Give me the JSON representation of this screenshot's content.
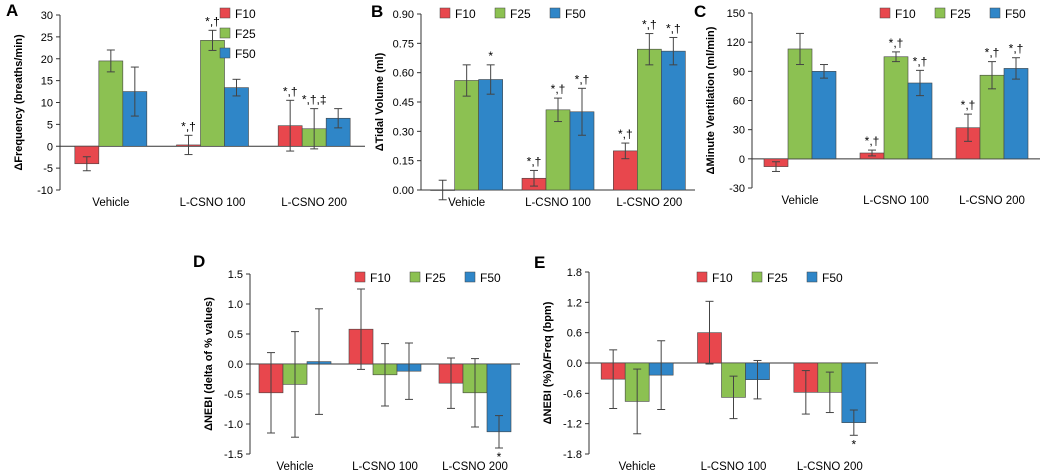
{
  "colors": {
    "F10": "#e8474d",
    "F25": "#8cc152",
    "F50": "#2f86c8"
  },
  "series_names": [
    "F10",
    "F25",
    "F50"
  ],
  "chart_data": [
    {
      "panel": "A",
      "type": "bar",
      "ylabel": "ΔFrequency (breaths/min)",
      "categories": [
        "Vehicle",
        "L-CSNO 100",
        "L-CSNO 200"
      ],
      "ylim": [
        -10,
        30
      ],
      "yticks": [
        "30",
        "25",
        "20",
        "15",
        "10",
        "5",
        "0",
        "-5",
        "-10"
      ],
      "series": [
        {
          "name": "F10",
          "values": [
            -4.0,
            0.3,
            4.7
          ],
          "errors": [
            1.6,
            2.2,
            5.8
          ]
        },
        {
          "name": "F25",
          "values": [
            19.5,
            24.2,
            4.0
          ],
          "errors": [
            2.5,
            2.3,
            4.6
          ]
        },
        {
          "name": "F50",
          "values": [
            12.5,
            13.4,
            6.4
          ],
          "errors": [
            5.6,
            1.9,
            2.2
          ]
        }
      ],
      "annotations": [
        [
          "",
          "*,†",
          "*,†"
        ],
        [
          "",
          "*,†",
          "*,†,‡"
        ],
        [
          "",
          "",
          ""
        ]
      ],
      "legend": "top-right"
    },
    {
      "panel": "B",
      "type": "bar",
      "ylabel": "ΔTidal Volume (ml)",
      "categories": [
        "Vehicle",
        "L-CSNO 100",
        "L-CSNO 200"
      ],
      "ylim": [
        0,
        0.9
      ],
      "yticks": [
        "0.90",
        "0.75",
        "0.60",
        "0.45",
        "0.30",
        "0.15",
        "0.00"
      ],
      "series": [
        {
          "name": "F10",
          "values": [
            0.0,
            0.06,
            0.2
          ],
          "errors": [
            0.05,
            0.04,
            0.04
          ]
        },
        {
          "name": "F25",
          "values": [
            0.56,
            0.41,
            0.72
          ],
          "errors": [
            0.08,
            0.06,
            0.08
          ]
        },
        {
          "name": "F50",
          "values": [
            0.565,
            0.4,
            0.71
          ],
          "errors": [
            0.075,
            0.12,
            0.07
          ]
        }
      ],
      "annotations": [
        [
          "",
          "*,†",
          "*,†"
        ],
        [
          "",
          "*,†",
          "*,†"
        ],
        [
          "*",
          "*,†",
          "*,†"
        ]
      ],
      "legend": "top"
    },
    {
      "panel": "C",
      "type": "bar",
      "ylabel": "ΔMinute Ventilation (ml/min)",
      "categories": [
        "Vehicle",
        "L-CSNO 100",
        "L-CSNO 200"
      ],
      "ylim": [
        -30,
        150
      ],
      "yticks": [
        "150",
        "120",
        "90",
        "60",
        "30",
        "0",
        "-30"
      ],
      "series": [
        {
          "name": "F10",
          "values": [
            -8,
            6,
            32
          ],
          "errors": [
            5,
            3,
            14
          ]
        },
        {
          "name": "F25",
          "values": [
            113,
            105,
            86
          ],
          "errors": [
            16,
            5,
            14
          ]
        },
        {
          "name": "F50",
          "values": [
            90,
            78,
            93
          ],
          "errors": [
            7,
            13,
            11
          ]
        }
      ],
      "annotations": [
        [
          "",
          "*,†",
          "*,†"
        ],
        [
          "",
          "*,†",
          "*,†"
        ],
        [
          "",
          "*,†",
          "*,†"
        ]
      ],
      "legend": "top-right"
    },
    {
      "panel": "D",
      "type": "bar",
      "ylabel": "ΔNEBI (delta of % values)",
      "categories": [
        "Vehicle",
        "L-CSNO 100",
        "L-CSNO 200"
      ],
      "ylim": [
        -1.5,
        1.5
      ],
      "yticks": [
        "1.5",
        "1.0",
        "0.5",
        "0.0",
        "-0.5",
        "-1.0",
        "-1.5"
      ],
      "series": [
        {
          "name": "F10",
          "values": [
            -0.48,
            0.58,
            -0.32
          ],
          "errors": [
            0.67,
            0.67,
            0.42
          ]
        },
        {
          "name": "F25",
          "values": [
            -0.34,
            -0.18,
            -0.48
          ],
          "errors": [
            0.88,
            0.52,
            0.57
          ]
        },
        {
          "name": "F50",
          "values": [
            0.04,
            -0.12,
            -1.13
          ],
          "errors": [
            0.88,
            0.47,
            0.27
          ]
        }
      ],
      "annotations": [
        [
          "",
          "",
          ""
        ],
        [
          "",
          "",
          ""
        ],
        [
          "",
          "",
          "*"
        ]
      ],
      "legend": "top"
    },
    {
      "panel": "E",
      "type": "bar",
      "ylabel": "ΔNEBI (%)Δ/Freq (bpm)",
      "categories": [
        "Vehicle",
        "L-CSNO 100",
        "L-CSNO 200"
      ],
      "ylim": [
        -1.8,
        1.8
      ],
      "yticks": [
        "1.8",
        "1.2",
        "0.6",
        "0.0",
        "-0.6",
        "-1.2",
        "-1.8"
      ],
      "series": [
        {
          "name": "F10",
          "values": [
            -0.32,
            0.6,
            -0.58
          ],
          "errors": [
            0.58,
            0.62,
            0.43
          ]
        },
        {
          "name": "F25",
          "values": [
            -0.76,
            -0.68,
            -0.58
          ],
          "errors": [
            0.64,
            0.42,
            0.4
          ]
        },
        {
          "name": "F50",
          "values": [
            -0.24,
            -0.33,
            -1.18
          ],
          "errors": [
            0.68,
            0.38,
            0.25
          ]
        }
      ],
      "annotations": [
        [
          "",
          "",
          ""
        ],
        [
          "",
          "",
          ""
        ],
        [
          "",
          "",
          "*"
        ]
      ],
      "legend": "top"
    }
  ]
}
